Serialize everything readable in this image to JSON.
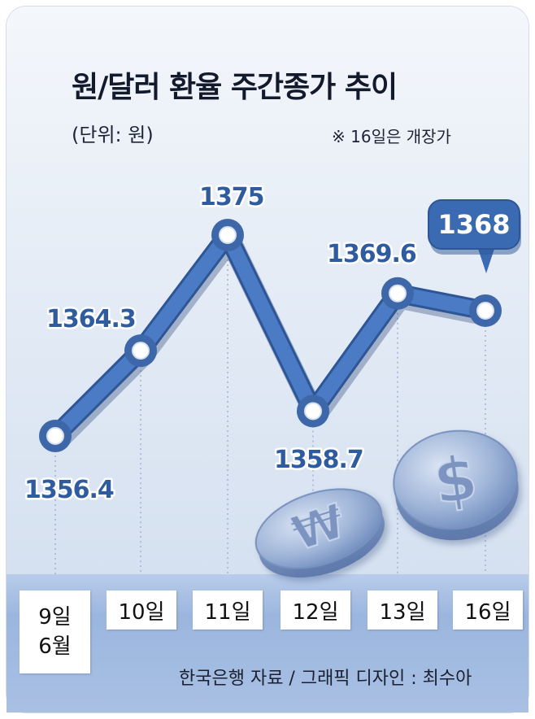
{
  "title": "원/달러 환율 주간종가 추이",
  "unit": "(단위: 원)",
  "note": "※ 16일은 개장가",
  "source": "한국은행 자료 / 그래픽 디자인 : 최수아",
  "colors": {
    "line": "#4a7bc4",
    "label": "#2f5c9f",
    "callout": "#3a6ab2"
  },
  "icons": [
    "won-coin-icon",
    "dollar-coin-icon"
  ],
  "chart_data": {
    "type": "line",
    "categories": [
      "9일",
      "10일",
      "11일",
      "12일",
      "13일",
      "16일"
    ],
    "values": [
      1356.4,
      1364.3,
      1375,
      1358.7,
      1369.6,
      1368
    ],
    "value_labels": [
      "1356.4",
      "1364.3",
      "1375",
      "1358.7",
      "1369.6",
      "1368"
    ],
    "month_label": "6월",
    "highlight": "1368",
    "ylim": [
      1352,
      1380
    ],
    "grid": "vertical-dotted"
  }
}
